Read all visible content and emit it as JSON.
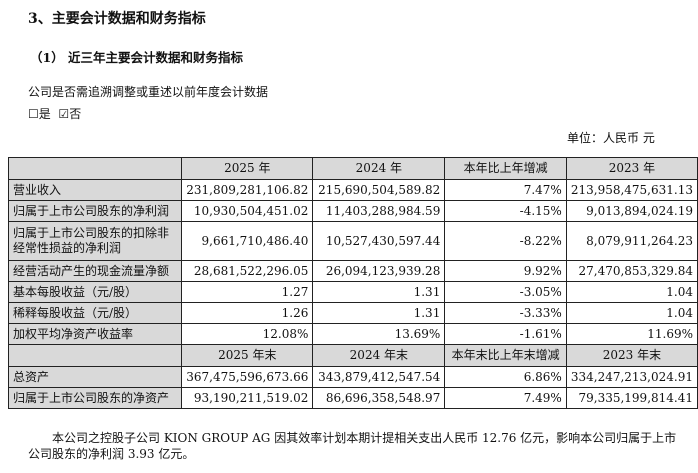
{
  "section_title": "3、主要会计数据和财务指标",
  "subsection_title": "（1） 近三年主要会计数据和财务指标",
  "restatement_question": "公司是否需追溯调整或重述以前年度会计数据",
  "options": [
    {
      "label": "是",
      "checked": false
    },
    {
      "label": "否",
      "checked": true
    }
  ],
  "unit": "单位：人民币 元",
  "table": {
    "header1": [
      "",
      "2025 年",
      "2024 年",
      "本年比上年增减",
      "2023 年"
    ],
    "rows1": [
      [
        "营业收入",
        "231,809,281,106.82",
        "215,690,504,589.82",
        "7.47%",
        "213,958,475,631.13"
      ],
      [
        "归属于上市公司股东的净利润",
        "10,930,504,451.02",
        "11,403,288,984.59",
        "-4.15%",
        "9,013,894,024.19"
      ],
      [
        "归属于上市公司股东的扣除非经常性损益的净利润",
        "9,661,710,486.40",
        "10,527,430,597.44",
        "-8.22%",
        "8,079,911,264.23"
      ],
      [
        "经营活动产生的现金流量净额",
        "28,681,522,296.05",
        "26,094,123,939.28",
        "9.92%",
        "27,470,853,329.84"
      ],
      [
        "基本每股收益（元/股）",
        "1.27",
        "1.31",
        "-3.05%",
        "1.04"
      ],
      [
        "稀释每股收益（元/股）",
        "1.26",
        "1.31",
        "-3.33%",
        "1.04"
      ],
      [
        "加权平均净资产收益率",
        "12.08%",
        "13.69%",
        "-1.61%",
        "11.69%"
      ]
    ],
    "header2": [
      "",
      "2025 年末",
      "2024 年末",
      "本年末比上年末增减",
      "2023 年末"
    ],
    "rows2": [
      [
        "总资产",
        "367,475,596,673.66",
        "343,879,412,547.54",
        "6.86%",
        "334,247,213,024.91"
      ],
      [
        "归属于上市公司股东的净资产",
        "93,190,211,519.02",
        "86,696,358,548.97",
        "7.49%",
        "79,335,199,814.41"
      ]
    ]
  },
  "footnote_line1": "本公司之控股子公司 KION GROUP AG 因其效率计划本期计提相关支出人民币 12.76 亿元，影响本公司归属于上市",
  "footnote_line2": "公司股东的净利润 3.93 亿元。"
}
